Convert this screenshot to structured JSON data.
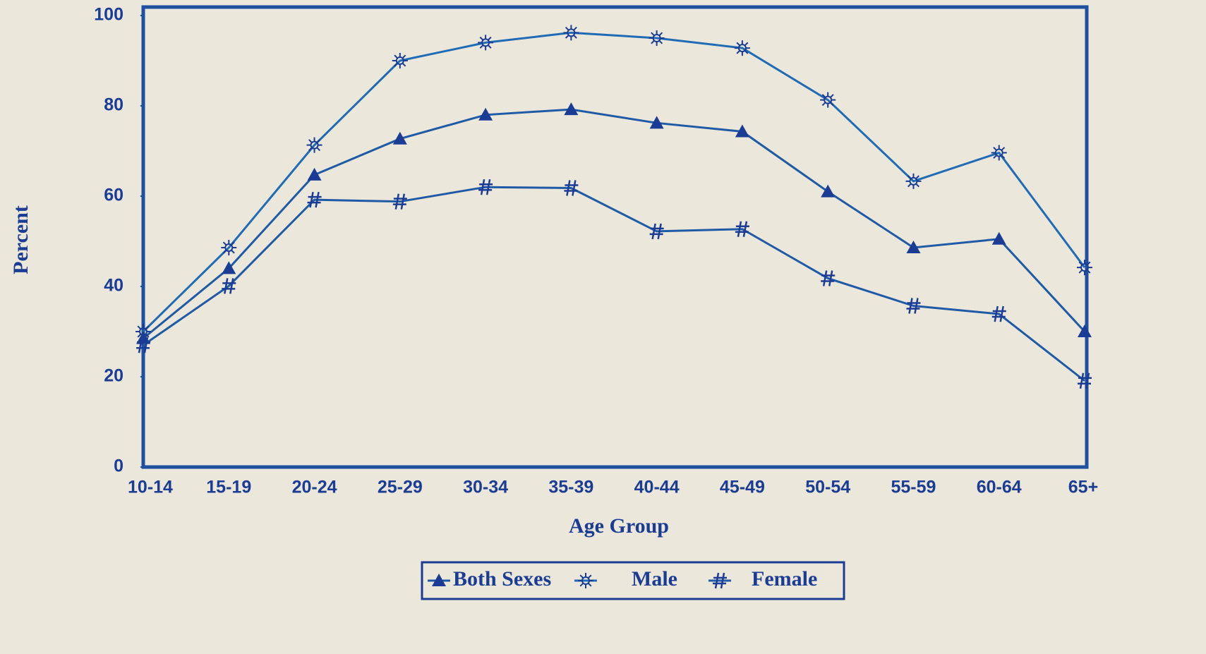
{
  "chart_data": {
    "type": "line",
    "x_label": "Age Group",
    "y_label": "Percent",
    "categories": [
      "10-14",
      "15-19",
      "20-24",
      "25-29",
      "30-34",
      "35-39",
      "40-44",
      "45-49",
      "50-54",
      "55-59",
      "60-64",
      "65+"
    ],
    "series": [
      {
        "name": "Both Sexes",
        "color": "#1f5aa6",
        "marker": "triangle",
        "values": [
          28.5,
          44,
          64.7,
          72.7,
          78,
          79.2,
          76.2,
          74.3,
          61,
          48.6,
          50.5,
          30
        ]
      },
      {
        "name": "Male",
        "color": "#1f6bb5",
        "marker": "star",
        "values": [
          30,
          48.6,
          71.3,
          90,
          94,
          96.2,
          95,
          92.8,
          81.3,
          63.3,
          69.6,
          44.2
        ]
      },
      {
        "name": "Female",
        "color": "#1f5aa6",
        "marker": "hash",
        "values": [
          27,
          40.1,
          59.2,
          58.8,
          62,
          61.8,
          52.2,
          52.7,
          41.8,
          35.7,
          33.9,
          19.1
        ]
      }
    ],
    "ylim": [
      0,
      100
    ],
    "yticks": [
      0,
      20,
      40,
      60,
      80,
      100
    ],
    "grid": false,
    "legend": "bottom"
  }
}
